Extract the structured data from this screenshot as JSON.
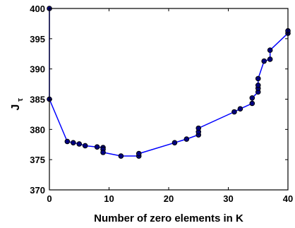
{
  "chart_data": {
    "type": "line",
    "xlabel": "Number of zero elements in K",
    "ylabel_main": "J",
    "ylabel_sub": "τ",
    "xlim": [
      0,
      40
    ],
    "ylim": [
      370,
      400
    ],
    "xticks": [
      0,
      10,
      20,
      30,
      40
    ],
    "yticks": [
      370,
      375,
      380,
      385,
      390,
      395,
      400
    ],
    "grid": false,
    "line_color": "#0000ff",
    "marker_color": "#000080",
    "series": [
      {
        "x": [
          0,
          0,
          3,
          4,
          5,
          6,
          8,
          9,
          9,
          9,
          12,
          15,
          15,
          21,
          23,
          25,
          25,
          25,
          31,
          32,
          34,
          34,
          35,
          35,
          35,
          35,
          36,
          37,
          37,
          40,
          40
        ],
        "y": [
          400,
          385,
          378.0,
          377.8,
          377.6,
          377.3,
          377.1,
          377.0,
          376.7,
          376.2,
          375.6,
          375.6,
          376.0,
          377.8,
          378.4,
          379.1,
          379.6,
          380.2,
          382.9,
          383.4,
          384.3,
          385.2,
          386.2,
          386.8,
          387.3,
          388.4,
          391.3,
          391.6,
          393.1,
          395.9,
          396.3
        ]
      }
    ]
  }
}
